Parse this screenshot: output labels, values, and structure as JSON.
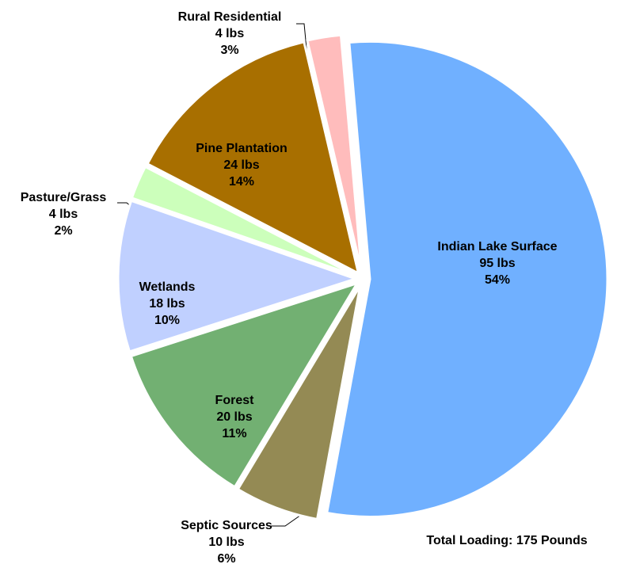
{
  "chart_data": {
    "type": "pie",
    "categories": [
      "Indian Lake Surface",
      "Septic Sources",
      "Forest",
      "Wetlands",
      "Pasture/Grass",
      "Pine Plantation",
      "Rural Residential"
    ],
    "values": [
      95,
      10,
      20,
      18,
      4,
      24,
      4
    ],
    "value_labels": [
      "95 lbs",
      "10 lbs",
      "20 lbs",
      "18 lbs",
      "4 lbs",
      "24 lbs",
      "4 lbs"
    ],
    "percentages": [
      54,
      6,
      11,
      10,
      2,
      14,
      3
    ],
    "percentage_labels": [
      "54%",
      "6%",
      "11%",
      "10%",
      "2%",
      "14%",
      "3%"
    ],
    "colors": [
      "#70b0ff",
      "#948a54",
      "#72b072",
      "#c0d0ff",
      "#ccffbb",
      "#a86f00",
      "#ffbcbc"
    ],
    "annotation": "Total Loading: 175 Pounds"
  }
}
